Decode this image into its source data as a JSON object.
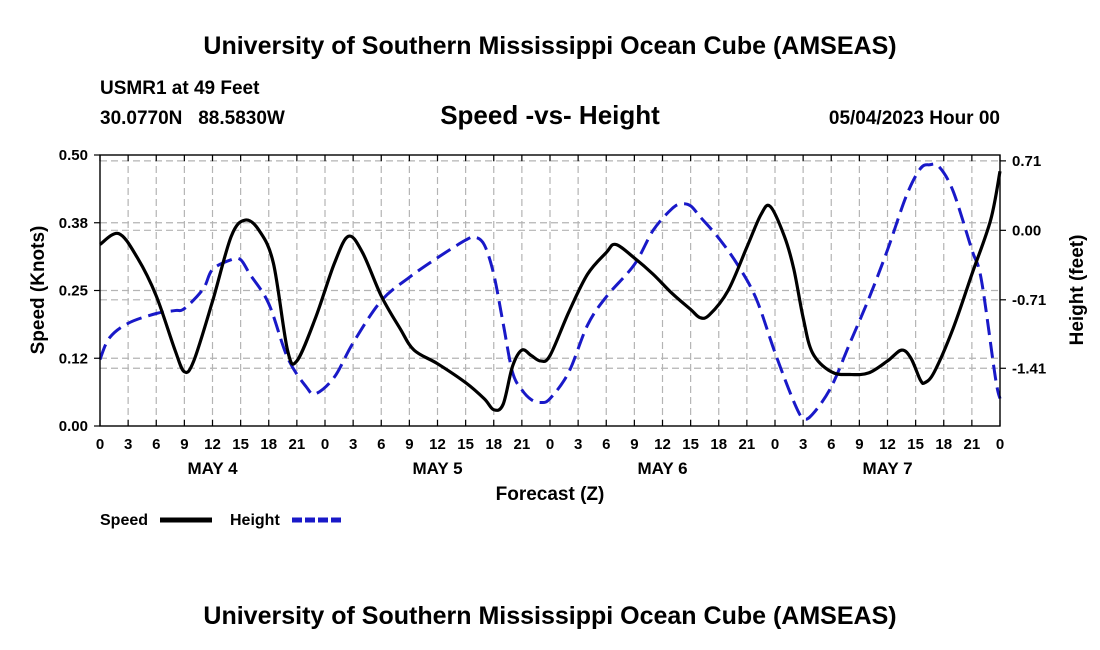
{
  "header": {
    "title_top": "University of Southern Mississippi Ocean Cube (AMSEAS)",
    "title_bottom": "University of Southern Mississippi Ocean Cube (AMSEAS)",
    "station": "USMR1 at 49 Feet",
    "coords": "30.0770N   88.5830W",
    "chart_title": "Speed -vs- Height",
    "run_time": "05/04/2023 Hour 00"
  },
  "legend": {
    "speed_label": "Speed",
    "height_label": "Height"
  },
  "chart_data": {
    "type": "line",
    "title": "Speed -vs- Height",
    "xlabel": "Forecast (Z)",
    "ylabel": "Speed (Knots)",
    "y2label": "Height (feet)",
    "x_range_hours": [
      0,
      96
    ],
    "x_tick_step_hours": 3,
    "x_tick_labels": [
      "0",
      "3",
      "6",
      "9",
      "12",
      "15",
      "18",
      "21",
      "0",
      "3",
      "6",
      "9",
      "12",
      "15",
      "18",
      "21",
      "0",
      "3",
      "6",
      "9",
      "12",
      "15",
      "18",
      "21",
      "0",
      "3",
      "6",
      "9",
      "12",
      "15",
      "18",
      "21",
      "0"
    ],
    "day_labels": [
      {
        "label": "MAY 4",
        "hour": 12
      },
      {
        "label": "MAY 5",
        "hour": 36
      },
      {
        "label": "MAY 6",
        "hour": 60
      },
      {
        "label": "MAY 7",
        "hour": 84
      }
    ],
    "ylim": [
      0,
      0.5
    ],
    "y_ticks": [
      0.0,
      0.125,
      0.25,
      0.375,
      0.5
    ],
    "y_tick_labels": [
      "0.00",
      "0.12",
      "0.25",
      "0.38",
      "0.50"
    ],
    "y2lim": [
      -2.0,
      0.77
    ],
    "y2_ticks": [
      -1.41,
      -0.71,
      0.0,
      0.71
    ],
    "y2_tick_labels": [
      "-1.41",
      "-0.71",
      "0.00",
      "0.71"
    ],
    "grid": true,
    "legend_position": "bottom-left",
    "series": [
      {
        "name": "Speed",
        "axis": "left",
        "color": "#000000",
        "style": "solid",
        "points": [
          [
            0,
            0.335
          ],
          [
            2,
            0.355
          ],
          [
            4,
            0.31
          ],
          [
            6,
            0.24
          ],
          [
            8,
            0.14
          ],
          [
            9,
            0.1
          ],
          [
            10,
            0.12
          ],
          [
            12,
            0.23
          ],
          [
            14,
            0.35
          ],
          [
            15.5,
            0.38
          ],
          [
            17,
            0.36
          ],
          [
            18.5,
            0.3
          ],
          [
            20,
            0.14
          ],
          [
            21,
            0.12
          ],
          [
            23,
            0.2
          ],
          [
            25,
            0.3
          ],
          [
            26.5,
            0.35
          ],
          [
            28,
            0.32
          ],
          [
            30,
            0.24
          ],
          [
            32,
            0.18
          ],
          [
            33.5,
            0.14
          ],
          [
            36,
            0.115
          ],
          [
            39,
            0.08
          ],
          [
            41,
            0.05
          ],
          [
            42,
            0.03
          ],
          [
            43,
            0.04
          ],
          [
            44,
            0.11
          ],
          [
            45,
            0.14
          ],
          [
            46,
            0.13
          ],
          [
            47,
            0.12
          ],
          [
            48,
            0.13
          ],
          [
            50,
            0.21
          ],
          [
            52,
            0.28
          ],
          [
            54,
            0.32
          ],
          [
            55,
            0.335
          ],
          [
            57,
            0.31
          ],
          [
            59,
            0.28
          ],
          [
            61,
            0.245
          ],
          [
            63,
            0.215
          ],
          [
            64,
            0.2
          ],
          [
            65,
            0.205
          ],
          [
            67,
            0.25
          ],
          [
            69,
            0.33
          ],
          [
            70.5,
            0.39
          ],
          [
            71.5,
            0.405
          ],
          [
            73,
            0.35
          ],
          [
            74,
            0.29
          ],
          [
            75,
            0.2
          ],
          [
            76,
            0.135
          ],
          [
            78,
            0.1
          ],
          [
            80,
            0.095
          ],
          [
            82,
            0.098
          ],
          [
            84,
            0.12
          ],
          [
            85.5,
            0.14
          ],
          [
            86.5,
            0.125
          ],
          [
            87.5,
            0.085
          ],
          [
            88,
            0.08
          ],
          [
            89,
            0.1
          ],
          [
            91,
            0.18
          ],
          [
            93,
            0.28
          ],
          [
            95,
            0.38
          ],
          [
            96,
            0.47
          ]
        ]
      },
      {
        "name": "Height",
        "axis": "right",
        "color": "#1919c8",
        "style": "dashed",
        "points": [
          [
            0,
            -1.32
          ],
          [
            1,
            -1.1
          ],
          [
            3,
            -0.95
          ],
          [
            6,
            -0.85
          ],
          [
            8,
            -0.82
          ],
          [
            9,
            -0.8
          ],
          [
            11,
            -0.6
          ],
          [
            12,
            -0.4
          ],
          [
            14,
            -0.3
          ],
          [
            15,
            -0.3
          ],
          [
            16,
            -0.45
          ],
          [
            18,
            -0.75
          ],
          [
            20,
            -1.3
          ],
          [
            22,
            -1.6
          ],
          [
            23,
            -1.67
          ],
          [
            25,
            -1.5
          ],
          [
            27,
            -1.15
          ],
          [
            30,
            -0.72
          ],
          [
            33,
            -0.48
          ],
          [
            36,
            -0.28
          ],
          [
            39,
            -0.1
          ],
          [
            40,
            -0.07
          ],
          [
            41,
            -0.15
          ],
          [
            42,
            -0.45
          ],
          [
            43,
            -0.95
          ],
          [
            44,
            -1.45
          ],
          [
            45,
            -1.63
          ],
          [
            46,
            -1.73
          ],
          [
            47,
            -1.76
          ],
          [
            48,
            -1.72
          ],
          [
            50,
            -1.45
          ],
          [
            52,
            -0.97
          ],
          [
            54,
            -0.68
          ],
          [
            57,
            -0.35
          ],
          [
            59,
            0.0
          ],
          [
            61,
            0.22
          ],
          [
            62,
            0.27
          ],
          [
            63,
            0.25
          ],
          [
            64,
            0.14
          ],
          [
            66,
            -0.08
          ],
          [
            68,
            -0.35
          ],
          [
            70,
            -0.7
          ],
          [
            72,
            -1.25
          ],
          [
            74,
            -1.75
          ],
          [
            75,
            -1.92
          ],
          [
            76,
            -1.88
          ],
          [
            78,
            -1.6
          ],
          [
            80,
            -1.15
          ],
          [
            82,
            -0.7
          ],
          [
            84,
            -0.2
          ],
          [
            86,
            0.35
          ],
          [
            87.5,
            0.63
          ],
          [
            88.5,
            0.67
          ],
          [
            89.5,
            0.65
          ],
          [
            91,
            0.4
          ],
          [
            93,
            -0.2
          ],
          [
            94,
            -0.5
          ],
          [
            95.5,
            -1.5
          ],
          [
            96,
            -1.72
          ]
        ]
      }
    ]
  }
}
